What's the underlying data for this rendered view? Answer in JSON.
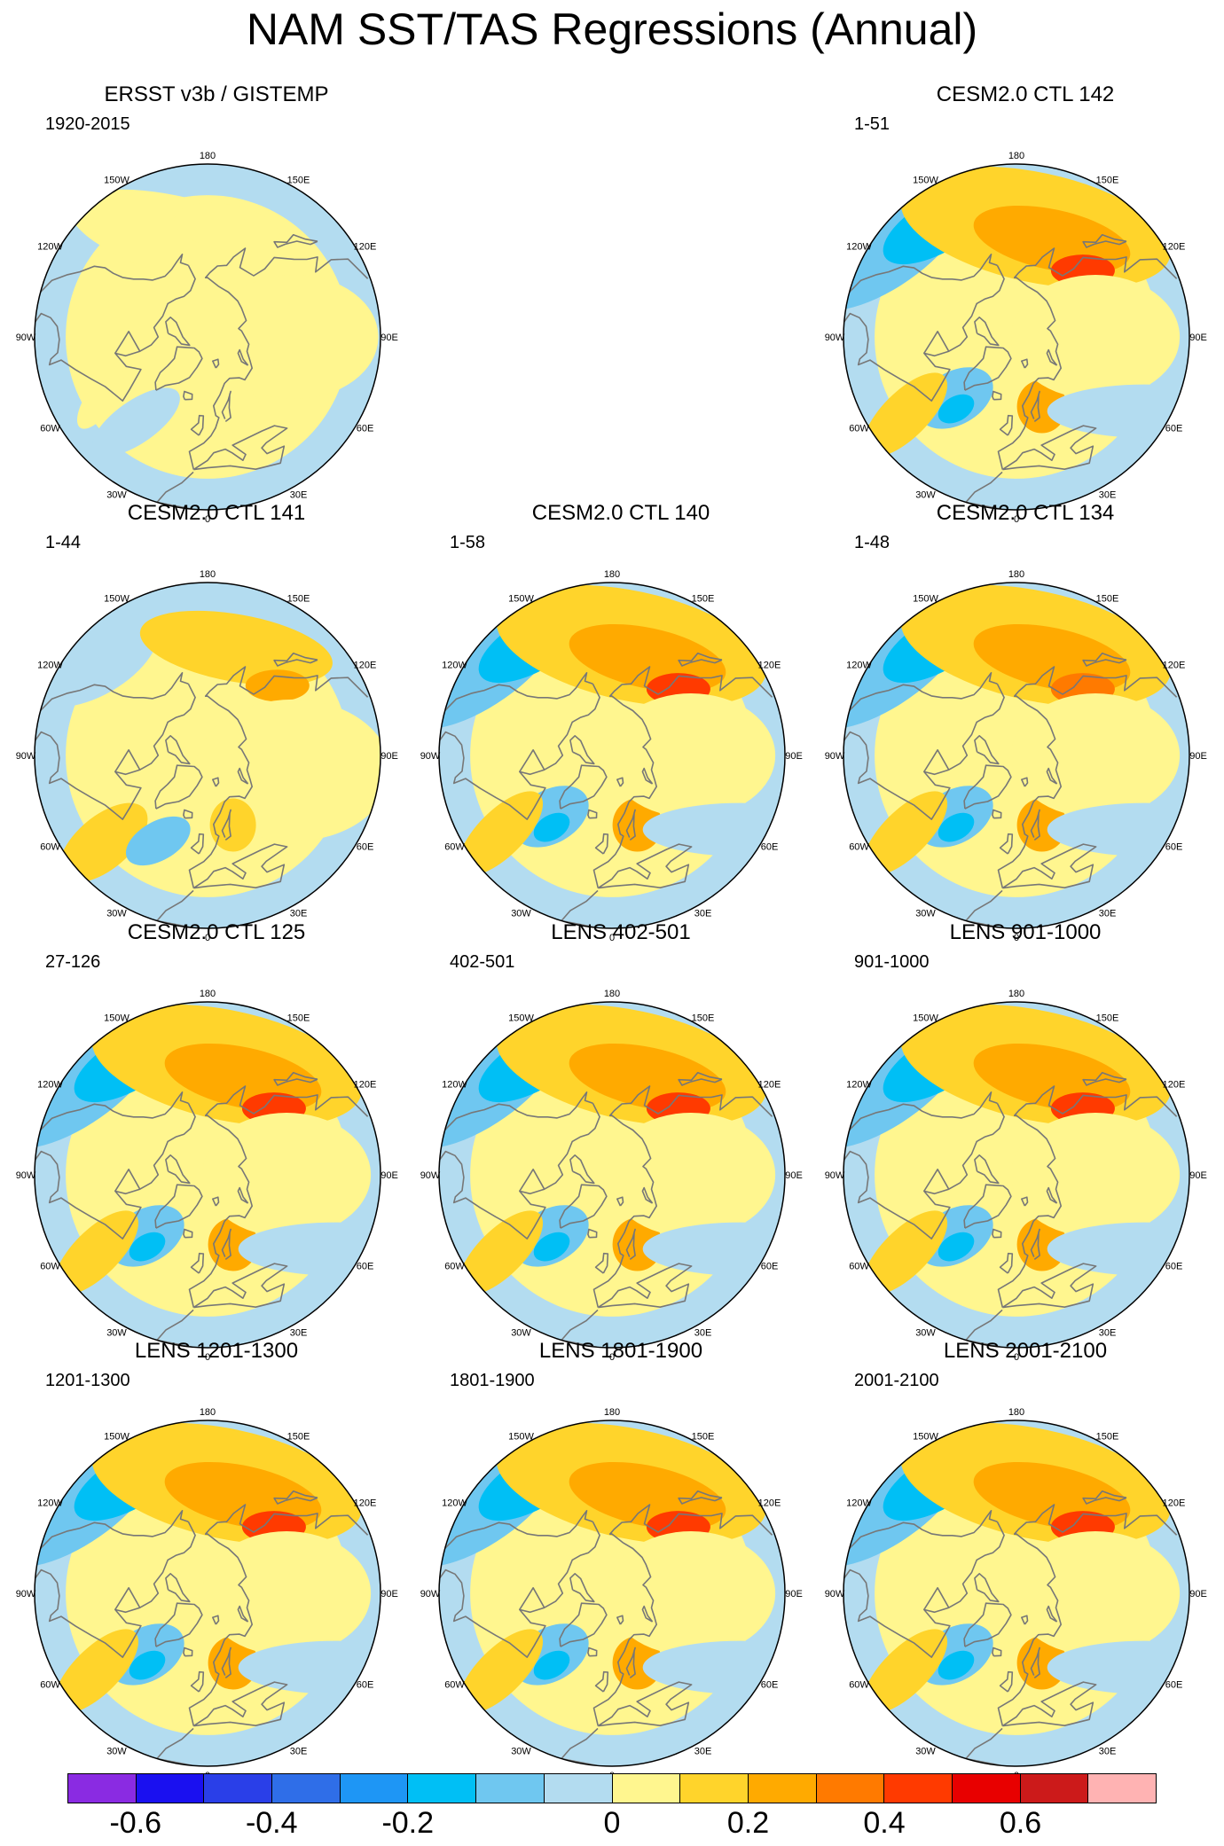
{
  "title": "NAM SST/TAS Regressions (Annual)",
  "longitude_labels": [
    "180",
    "150E",
    "120E",
    "90E",
    "60E",
    "30E",
    "0",
    "30W",
    "60W",
    "90W",
    "120W",
    "150W"
  ],
  "panels": [
    {
      "id": "ersst",
      "title": "ERSST v3b / GISTEMP",
      "period": "1920-2015",
      "row": 0,
      "col": 0,
      "pattern": "obs",
      "amp": 0.45
    },
    {
      "id": "ctl142",
      "title": "CESM2.0 CTL 142",
      "period": "1-51",
      "row": 0,
      "col": 2,
      "pattern": "model",
      "amp": 1.0
    },
    {
      "id": "ctl141",
      "title": "CESM2.0 CTL 141",
      "period": "1-44",
      "row": 1,
      "col": 0,
      "pattern": "weak",
      "amp": 0.6
    },
    {
      "id": "ctl140",
      "title": "CESM2.0 CTL 140",
      "period": "1-58",
      "row": 1,
      "col": 1,
      "pattern": "model",
      "amp": 0.9
    },
    {
      "id": "ctl134",
      "title": "CESM2.0 CTL 134",
      "period": "1-48",
      "row": 1,
      "col": 2,
      "pattern": "model",
      "amp": 0.8
    },
    {
      "id": "ctl125",
      "title": "CESM2.0 CTL 125",
      "period": "27-126",
      "row": 2,
      "col": 0,
      "pattern": "model",
      "amp": 0.95
    },
    {
      "id": "lens402",
      "title": "LENS 402-501",
      "period": "402-501",
      "row": 2,
      "col": 1,
      "pattern": "model",
      "amp": 0.9
    },
    {
      "id": "lens901",
      "title": "LENS 901-1000",
      "period": "901-1000",
      "row": 2,
      "col": 2,
      "pattern": "model",
      "amp": 1.05
    },
    {
      "id": "lens1201",
      "title": "LENS 1201-1300",
      "period": "1201-1300",
      "row": 3,
      "col": 0,
      "pattern": "model",
      "amp": 1.0
    },
    {
      "id": "lens1801",
      "title": "LENS 1801-1900",
      "period": "1801-1900",
      "row": 3,
      "col": 1,
      "pattern": "model",
      "amp": 1.05
    },
    {
      "id": "lens2001",
      "title": "LENS 2001-2100",
      "period": "2001-2100",
      "row": 3,
      "col": 2,
      "pattern": "model",
      "amp": 1.0
    }
  ],
  "colorbar": {
    "colors": [
      "#8a2be2",
      "#1a10f0",
      "#2a3fe8",
      "#2f6ee8",
      "#1e96f5",
      "#00bff5",
      "#6fc7f0",
      "#b3dcf0",
      "#fff68f",
      "#ffd42b",
      "#ffaa00",
      "#ff7a00",
      "#ff3a00",
      "#e80000",
      "#cc1a1a",
      "#ffb3b3"
    ],
    "label_texts": [
      "-0.6",
      "-0.4",
      "-0.2",
      "0",
      "0.2",
      "0.4",
      "0.6"
    ],
    "label_boundaries": [
      1,
      3,
      5,
      8,
      10,
      12,
      14
    ]
  },
  "style": {
    "land_outline": "#777777",
    "map_border": "#000000"
  }
}
